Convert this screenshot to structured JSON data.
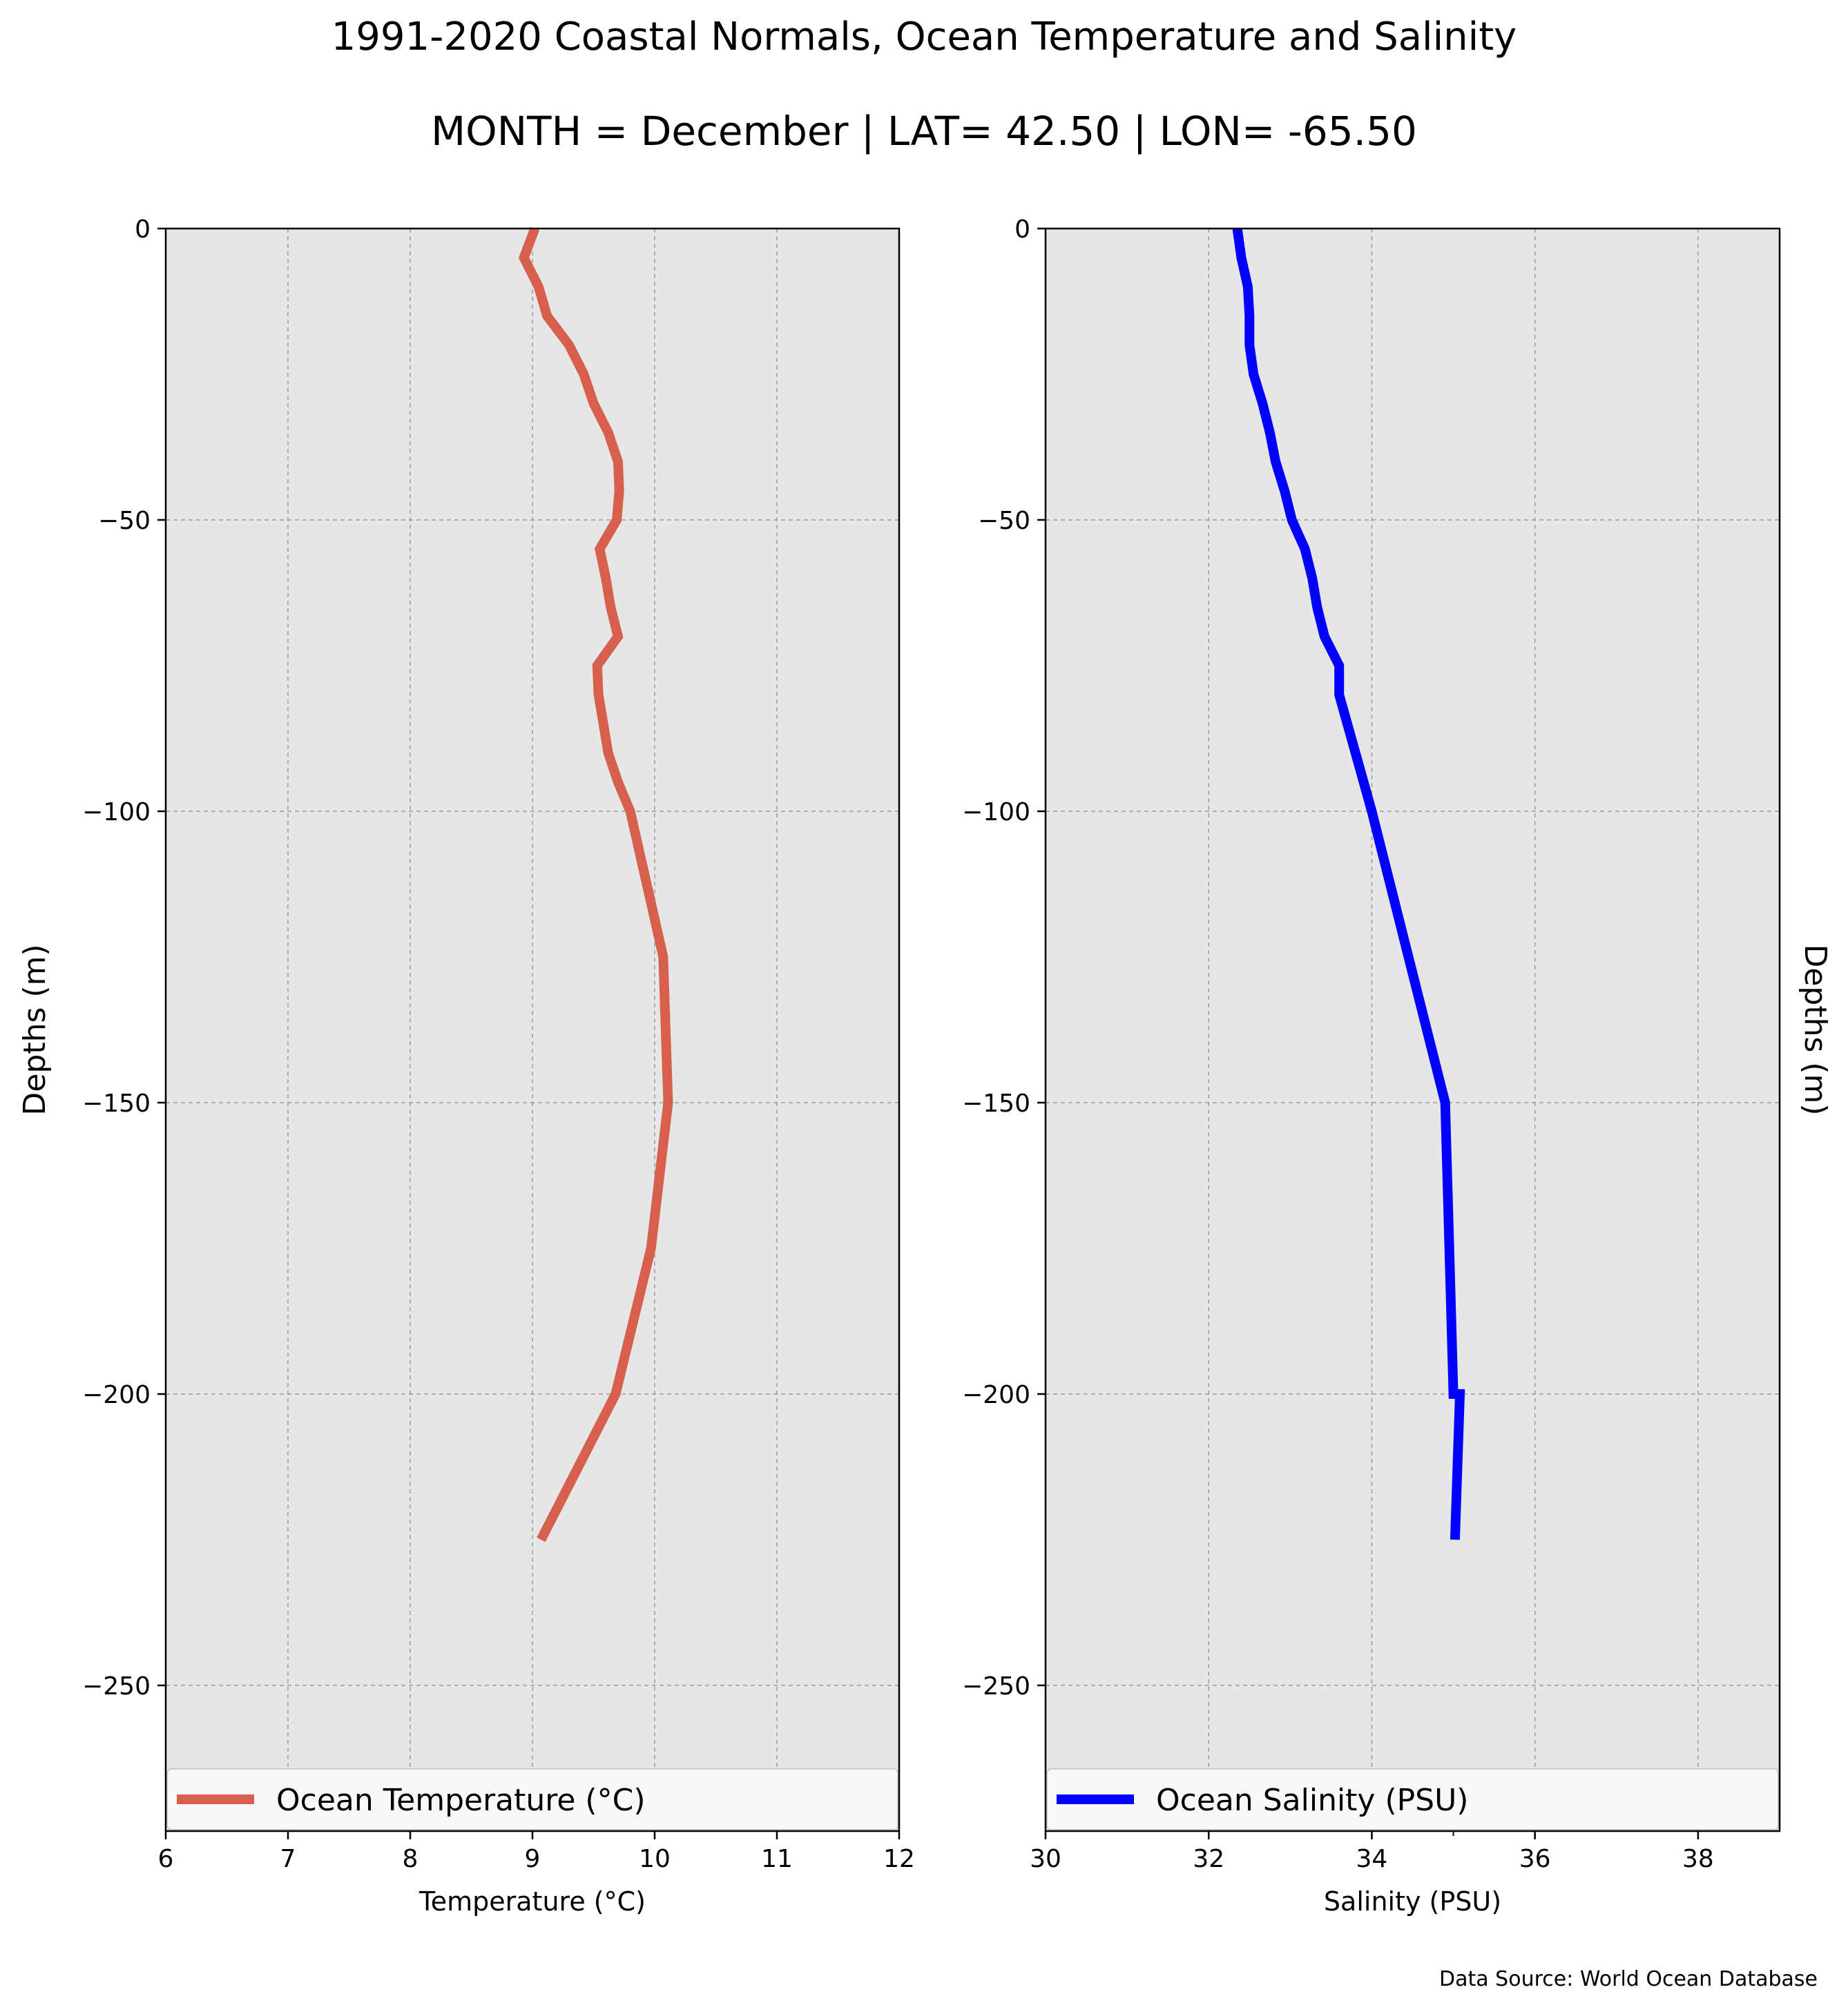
{
  "figure": {
    "title": "1991-2020 Coastal Normals, Ocean Temperature and Salinity",
    "subtitle": "MONTH = December | LAT= 42.50 | LON= -65.50",
    "source_note": "Data Source: World Ocean Database",
    "colors": {
      "panel_bg": "#e6e6e6",
      "grid": "#9a9a9a",
      "temperature": "#d6604d",
      "salinity": "#0000ff"
    }
  },
  "chart_data": [
    {
      "type": "line",
      "orientation": "vertical-profile",
      "xlabel": "Temperature (°C)",
      "ylabel": "Depths (m)",
      "xlim": [
        6,
        12
      ],
      "ylim": [
        -275,
        0
      ],
      "xticks": [
        "6",
        "7",
        "8",
        "9",
        "10",
        "11",
        "12"
      ],
      "yticks": [
        "0",
        "−50",
        "−100",
        "−150",
        "−200",
        "−250"
      ],
      "grid": true,
      "legend": "bottom",
      "series": [
        {
          "name": "Ocean Temperature (°C)",
          "color": "#d6604d",
          "x": [
            9.02,
            8.93,
            9.05,
            9.12,
            9.3,
            9.42,
            9.5,
            9.62,
            9.7,
            9.71,
            9.69,
            9.55,
            9.6,
            9.64,
            9.7,
            9.53,
            9.54,
            9.58,
            9.62,
            9.7,
            9.8,
            10.07,
            10.09,
            10.11,
            9.97,
            9.68,
            9.07
          ],
          "y": [
            0,
            -5,
            -10,
            -15,
            -20,
            -25,
            -30,
            -35,
            -40,
            -45,
            -50,
            -55,
            -60,
            -65,
            -70,
            -75,
            -80,
            -85,
            -90,
            -95,
            -100,
            -125,
            -137.5,
            -150,
            -175,
            -200,
            -225
          ]
        }
      ]
    },
    {
      "type": "line",
      "orientation": "vertical-profile",
      "xlabel": "Salinity (PSU)",
      "ylabel": "Depths (m)",
      "xlim": [
        30,
        39
      ],
      "ylim": [
        -275,
        0
      ],
      "xticks": [
        "30",
        "32",
        "34",
        "36",
        "38"
      ],
      "yticks": [
        "0",
        "−50",
        "−100",
        "−150",
        "−200",
        "−250"
      ],
      "grid": true,
      "legend": "bottom",
      "series": [
        {
          "name": "Ocean Salinity (PSU)",
          "color": "#0000ff",
          "x": [
            32.35,
            32.4,
            32.48,
            32.5,
            32.5,
            32.55,
            32.66,
            32.75,
            32.82,
            32.93,
            33.02,
            33.18,
            33.27,
            33.33,
            33.42,
            33.6,
            33.6,
            33.9,
            34.0,
            34.9,
            34.95,
            35.0,
            35.08,
            35.02
          ],
          "y": [
            0,
            -5,
            -10,
            -15,
            -20,
            -25,
            -30,
            -35,
            -40,
            -45,
            -50,
            -55,
            -60,
            -65,
            -70,
            -75,
            -80,
            -95,
            -100,
            -150,
            -175,
            -200,
            -200,
            -225
          ]
        }
      ]
    }
  ]
}
